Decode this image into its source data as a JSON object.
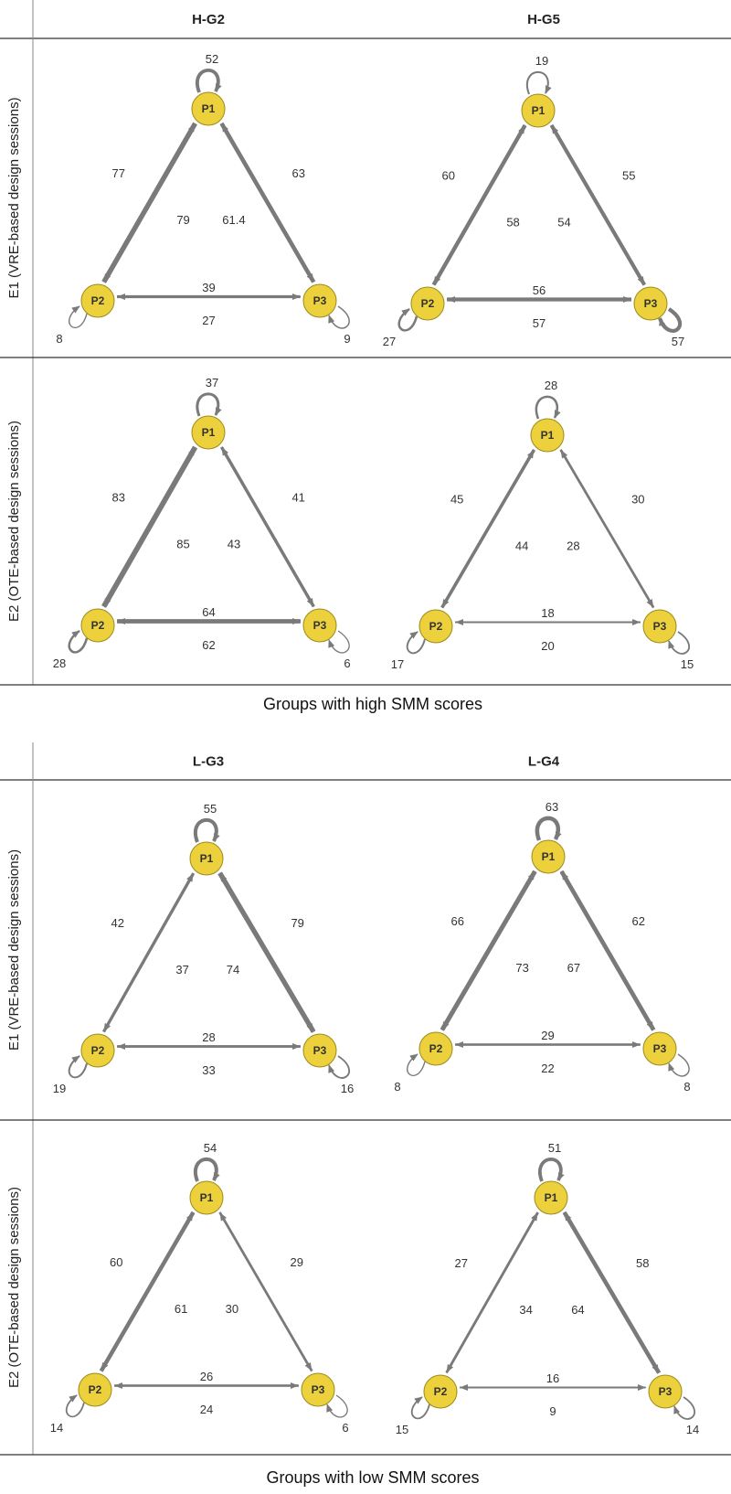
{
  "colors": {
    "node_fill": "#ecd13c",
    "node_stroke": "#9c8a1f",
    "edge": "#7a7a7a",
    "text": "#333333"
  },
  "sections": [
    {
      "caption": "Groups with high SMM scores",
      "columns": [
        "H-G2",
        "H-G5"
      ],
      "rows": [
        {
          "label": "E1 (VRE-based design sessions)",
          "diagrams": [
            {
              "group": "H-G2",
              "self": {
                "P1": 52,
                "P2": 8,
                "P3": 9
              },
              "edges": {
                "P1_P2": 79,
                "P2_P1": 77,
                "P1_P3": 63,
                "P3_P1": 61.4,
                "P2_P3": 39,
                "P3_P2": 27
              }
            },
            {
              "group": "H-G5",
              "self": {
                "P1": 19,
                "P2": 27,
                "P3": 57
              },
              "edges": {
                "P1_P2": 58,
                "P2_P1": 60,
                "P1_P3": 55,
                "P3_P1": 54,
                "P2_P3": 56,
                "P3_P2": 57
              }
            }
          ]
        },
        {
          "label": "E2 (OTE-based design sessions)",
          "diagrams": [
            {
              "group": "H-G2",
              "self": {
                "P1": 37,
                "P2": 28,
                "P3": 6
              },
              "edges": {
                "P1_P2": 85,
                "P2_P1": 83,
                "P1_P3": 41,
                "P3_P1": 43,
                "P2_P3": 64,
                "P3_P2": 62
              }
            },
            {
              "group": "H-G5",
              "self": {
                "P1": 28,
                "P2": 17,
                "P3": 15
              },
              "edges": {
                "P1_P2": 44,
                "P2_P1": 45,
                "P1_P3": 30,
                "P3_P1": 28,
                "P2_P3": 18,
                "P3_P2": 20
              }
            }
          ]
        }
      ]
    },
    {
      "caption": "Groups with low SMM scores",
      "columns": [
        "L-G3",
        "L-G4"
      ],
      "rows": [
        {
          "label": "E1 (VRE-based design sessions)",
          "diagrams": [
            {
              "group": "L-G3",
              "self": {
                "P1": 55,
                "P2": 19,
                "P3": 16
              },
              "edges": {
                "P1_P2": 37,
                "P2_P1": 42,
                "P1_P3": 79,
                "P3_P1": 74,
                "P2_P3": 28,
                "P3_P2": 33
              }
            },
            {
              "group": "L-G4",
              "self": {
                "P1": 63,
                "P2": 8,
                "P3": 8
              },
              "edges": {
                "P1_P2": 73,
                "P2_P1": 66,
                "P1_P3": 62,
                "P3_P1": 67,
                "P2_P3": 29,
                "P3_P2": 22
              }
            }
          ]
        },
        {
          "label": "E2 (OTE-based design sessions)",
          "diagrams": [
            {
              "group": "L-G3",
              "self": {
                "P1": 54,
                "P2": 14,
                "P3": 6
              },
              "edges": {
                "P1_P2": 61,
                "P2_P1": 60,
                "P1_P3": 29,
                "P3_P1": 30,
                "P2_P3": 26,
                "P3_P2": 24
              }
            },
            {
              "group": "L-G4",
              "self": {
                "P1": 51,
                "P2": 15,
                "P3": 14
              },
              "edges": {
                "P1_P2": 34,
                "P2_P1": 27,
                "P1_P3": 58,
                "P3_P1": 64,
                "P2_P3": 16,
                "P3_P2": 9
              }
            }
          ]
        }
      ]
    }
  ]
}
